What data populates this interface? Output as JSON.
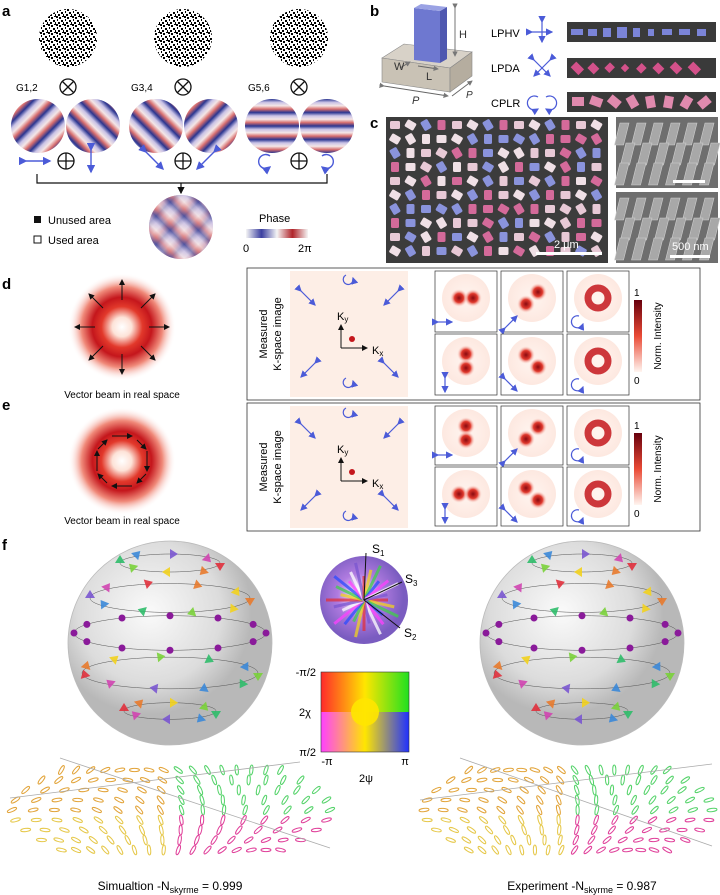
{
  "panels": {
    "a": "a",
    "b": "b",
    "c": "c",
    "d": "d",
    "e": "e",
    "f": "f"
  },
  "panel_a": {
    "groups": [
      "G1,2",
      "G3,4",
      "G5,6"
    ],
    "legend_unused": "Unused area",
    "legend_used": "Used area",
    "phase_label": "Phase",
    "phase_min": "0",
    "phase_max": "2π",
    "colors": {
      "phase_low": "#2a3590",
      "phase_mid": "#f2f2f2",
      "phase_high": "#b0242a",
      "arrow": "#4b5bd8"
    }
  },
  "panel_b": {
    "dims": {
      "H": "H",
      "W": "W",
      "L": "L",
      "P1": "P",
      "P2": "P"
    },
    "rows": [
      "LPHV",
      "LPDA",
      "CPLR"
    ],
    "colors": {
      "pillar": "#7b84d8",
      "strip": "#3a3a3a",
      "lpda": "#d3518a",
      "cplr": "#e08aae"
    }
  },
  "panel_c": {
    "scale1": "2 μm",
    "scale2": "500 nm"
  },
  "panel_d": {
    "caption": "Vector beam in real space",
    "kspace_label_1": "Measured",
    "kspace_label_2": "K-space image",
    "kx": "K",
    "kx_sub": "x",
    "ky": "K",
    "ky_sub": "y",
    "cbar_max": "1",
    "cbar_min": "0",
    "cbar_label": "Norm. Intensity"
  },
  "panel_e": {
    "caption": "Vector beam in real space",
    "kspace_label_1": "Measured",
    "kspace_label_2": "K-space image",
    "kx": "K",
    "kx_sub": "x",
    "ky": "K",
    "ky_sub": "y",
    "cbar_max": "1",
    "cbar_min": "0",
    "cbar_label": "Norm. Intensity"
  },
  "panel_f": {
    "s1": "S",
    "s1_sub": "1",
    "s2": "S",
    "s2_sub": "2",
    "s3": "S",
    "s3_sub": "3",
    "chi_label": "2χ",
    "chi_top": "-π/2",
    "chi_bottom": "π/2",
    "psi_label": "2ψ",
    "psi_left": "-π",
    "psi_right": "π",
    "sim_prefix": "Simualtion -N",
    "sim_sub": "skyrme",
    "sim_value": " = 0.999",
    "exp_prefix": "Experiment -N",
    "exp_sub": "skyrme",
    "exp_value": " = 0.987"
  }
}
